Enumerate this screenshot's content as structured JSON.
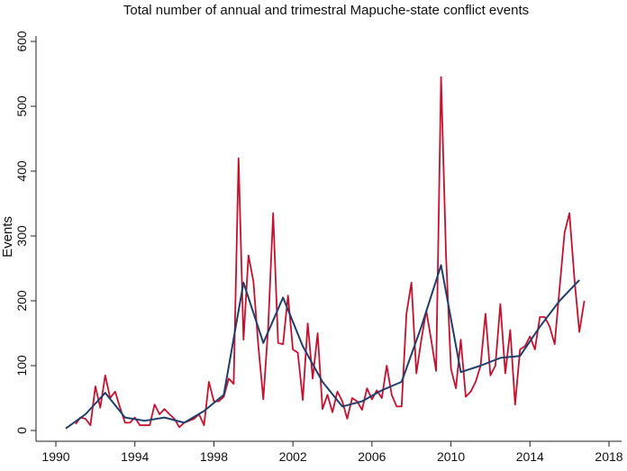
{
  "chart_data": {
    "type": "line",
    "title": "Total number of annual and trimestral Mapuche-state conflict events",
    "xlabel": "",
    "ylabel": "Events",
    "xlim": [
      1990,
      2018
    ],
    "ylim": [
      0,
      600
    ],
    "x_ticks": [
      1990,
      1994,
      1998,
      2002,
      2006,
      2010,
      2014,
      2018
    ],
    "y_ticks": [
      0,
      100,
      200,
      300,
      400,
      500,
      600
    ],
    "grid": false,
    "colors": {
      "quarterly": "#c8102e",
      "annual": "#1f3f6b"
    },
    "series": [
      {
        "name": "Trimestral",
        "x": [
          1991.0,
          1991.25,
          1991.5,
          1991.75,
          1992.0,
          1992.25,
          1992.5,
          1992.75,
          1993.0,
          1993.25,
          1993.5,
          1993.75,
          1994.0,
          1994.25,
          1994.5,
          1994.75,
          1995.0,
          1995.25,
          1995.5,
          1995.75,
          1996.0,
          1996.25,
          1996.5,
          1996.75,
          1997.0,
          1997.25,
          1997.5,
          1997.75,
          1998.0,
          1998.25,
          1998.5,
          1998.75,
          1999.0,
          1999.25,
          1999.5,
          1999.75,
          2000.0,
          2000.25,
          2000.5,
          2000.75,
          2001.0,
          2001.25,
          2001.5,
          2001.75,
          2002.0,
          2002.25,
          2002.5,
          2002.75,
          2003.0,
          2003.25,
          2003.5,
          2003.75,
          2004.0,
          2004.25,
          2004.5,
          2004.75,
          2005.0,
          2005.25,
          2005.5,
          2005.75,
          2006.0,
          2006.25,
          2006.5,
          2006.75,
          2007.0,
          2007.25,
          2007.5,
          2007.75,
          2008.0,
          2008.25,
          2008.5,
          2008.75,
          2009.0,
          2009.25,
          2009.5,
          2009.75,
          2010.0,
          2010.25,
          2010.5,
          2010.75,
          2011.0,
          2011.25,
          2011.5,
          2011.75,
          2012.0,
          2012.25,
          2012.5,
          2012.75,
          2013.0,
          2013.25,
          2013.5,
          2013.75,
          2014.0,
          2014.25,
          2014.5,
          2014.75,
          2015.0,
          2015.25,
          2015.5,
          2015.75,
          2016.0,
          2016.25,
          2016.5,
          2016.75
        ],
        "values": [
          10,
          20,
          18,
          8,
          68,
          35,
          85,
          50,
          60,
          35,
          12,
          12,
          20,
          8,
          8,
          8,
          40,
          25,
          33,
          25,
          18,
          5,
          12,
          15,
          18,
          25,
          8,
          75,
          45,
          45,
          52,
          80,
          72,
          420,
          140,
          270,
          230,
          130,
          48,
          160,
          335,
          135,
          133,
          208,
          125,
          120,
          47,
          165,
          80,
          150,
          33,
          55,
          28,
          60,
          45,
          18,
          50,
          45,
          32,
          65,
          48,
          62,
          50,
          100,
          55,
          37,
          37,
          180,
          228,
          88,
          140,
          185,
          140,
          92,
          545,
          270,
          95,
          65,
          140,
          52,
          60,
          75,
          100,
          180,
          85,
          100,
          195,
          88,
          155,
          40,
          125,
          130,
          145,
          125,
          175,
          175,
          160,
          133,
          220,
          305,
          335,
          235,
          152,
          200
        ]
      },
      {
        "name": "Annual",
        "x": [
          1990.5,
          1991.5,
          1992.5,
          1993.5,
          1994.5,
          1995.5,
          1996.5,
          1997.5,
          1998.5,
          1999.5,
          2000.5,
          2001.5,
          2002.5,
          2003.5,
          2004.5,
          2005.5,
          2006.5,
          2007.5,
          2008.5,
          2009.5,
          2010.5,
          2011.5,
          2012.5,
          2013.5,
          2014.5,
          2015.5,
          2016.5
        ],
        "values": [
          3,
          25,
          58,
          20,
          15,
          20,
          12,
          30,
          55,
          228,
          135,
          205,
          130,
          75,
          37,
          45,
          62,
          75,
          160,
          255,
          90,
          100,
          112,
          115,
          160,
          200,
          232
        ]
      }
    ]
  }
}
